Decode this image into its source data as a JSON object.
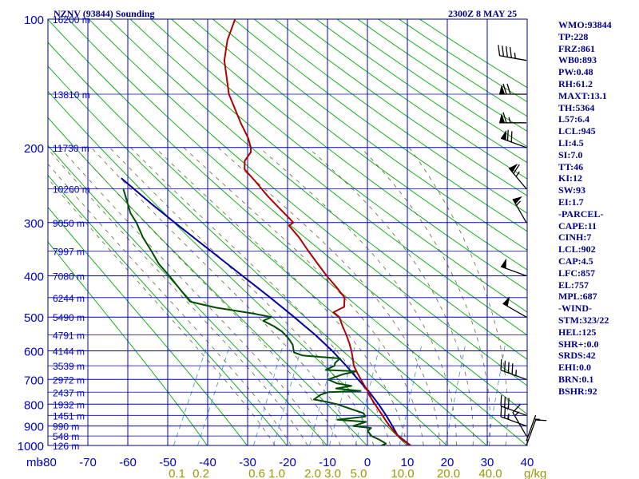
{
  "header": {
    "station": "NZNV (93844) Sounding",
    "valid_time": "2300Z  8 MAY 25"
  },
  "colors": {
    "frame": "#00008b",
    "grid": "#0000cc",
    "dry_adiabat": "#00aa00",
    "moist_adiabat": "#666633",
    "mixing_ratio": "#3a8ed8",
    "temperature": "#b00000",
    "dewpoint": "#004d00",
    "parcel": "#0000a0",
    "wind_barb": "#000000",
    "label": "#0000cc",
    "stats_text": "#00008b",
    "mixing_label": "#999900"
  },
  "chart_data": {
    "type": "skew-t",
    "title": "NZNV (93844) Sounding",
    "xlabel": "mb",
    "ylim": [
      1000,
      100
    ],
    "xlim": [
      -80,
      40
    ],
    "skew_c_per_mb": 0.0345,
    "pressure_levels": [
      100,
      200,
      300,
      400,
      500,
      600,
      700,
      800,
      900,
      1000
    ],
    "temperature_ticks": [
      "-80",
      "-70",
      "-60",
      "-50",
      "-40",
      "-30",
      "-20",
      "-10",
      "0",
      "10",
      "20",
      "30",
      "40"
    ],
    "height_labels": [
      {
        "p": 100,
        "label": "16200 m"
      },
      {
        "p": 150,
        "label": "13810 m"
      },
      {
        "p": 200,
        "label": "11730 m"
      },
      {
        "p": 250,
        "label": "10260 m"
      },
      {
        "p": 300,
        "label": "9050 m"
      },
      {
        "p": 350,
        "label": "7997 m"
      },
      {
        "p": 400,
        "label": "7080 m"
      },
      {
        "p": 450,
        "label": "6244 m"
      },
      {
        "p": 500,
        "label": "5490 m"
      },
      {
        "p": 550,
        "label": "4791 m"
      },
      {
        "p": 600,
        "label": "4144 m"
      },
      {
        "p": 650,
        "label": "3539 m"
      },
      {
        "p": 700,
        "label": "2972 m"
      },
      {
        "p": 750,
        "label": "2437 m"
      },
      {
        "p": 800,
        "label": "1932 m"
      },
      {
        "p": 850,
        "label": "1451 m"
      },
      {
        "p": 900,
        "label": "990 m"
      },
      {
        "p": 950,
        "label": "548 m"
      },
      {
        "p": 1000,
        "label": "126 m"
      }
    ],
    "mixing_ratio_labels": [
      {
        "value": "0.1",
        "t_at_1000": -48.5
      },
      {
        "value": "0.2",
        "t_at_1000": -42.5
      },
      {
        "value": "0.6",
        "t_at_1000": -28.5
      },
      {
        "value": "1.0",
        "t_at_1000": -23.5
      },
      {
        "value": "2.0",
        "t_at_1000": -14.5
      },
      {
        "value": "3.0",
        "t_at_1000": -9.5
      },
      {
        "value": "5.0",
        "t_at_1000": -3
      },
      {
        "value": "10.0",
        "t_at_1000": 8
      },
      {
        "value": "20.0",
        "t_at_1000": 19.5
      },
      {
        "value": "40.0",
        "t_at_1000": 30
      }
    ],
    "mixing_ratio_unit": "g/kg",
    "series": [
      {
        "key": "temperature",
        "points": [
          [
            1000,
            10.8
          ],
          [
            975,
            8.2
          ],
          [
            950,
            6.0
          ],
          [
            925,
            4.0
          ],
          [
            900,
            2.1
          ],
          [
            875,
            0.3
          ],
          [
            850,
            -1.4
          ],
          [
            825,
            -3.2
          ],
          [
            800,
            -5.0
          ],
          [
            775,
            -6.8
          ],
          [
            750,
            -8.4
          ],
          [
            725,
            -10.2
          ],
          [
            700,
            -12.0
          ],
          [
            675,
            -13.8
          ],
          [
            650,
            -15.5
          ],
          [
            625,
            -16.6
          ],
          [
            600,
            -17.8
          ],
          [
            575,
            -19.2
          ],
          [
            550,
            -20.8
          ],
          [
            525,
            -22.6
          ],
          [
            500,
            -24.3
          ],
          [
            487,
            -26.2
          ],
          [
            473,
            -24.0
          ],
          [
            450,
            -24.7
          ],
          [
            425,
            -27.6
          ],
          [
            400,
            -30.9
          ],
          [
            375,
            -34.0
          ],
          [
            350,
            -37.2
          ],
          [
            325,
            -40.4
          ],
          [
            305,
            -43.6
          ],
          [
            300,
            -42.7
          ],
          [
            280,
            -46.5
          ],
          [
            260,
            -50.5
          ],
          [
            240,
            -54.3
          ],
          [
            225,
            -57.5
          ],
          [
            215,
            -57.8
          ],
          [
            205,
            -56.6
          ],
          [
            200,
            -56.8
          ],
          [
            190,
            -57.8
          ],
          [
            175,
            -60.2
          ],
          [
            150,
            -64.0
          ],
          [
            125,
            -66.0
          ],
          [
            112,
            -65.7
          ],
          [
            100,
            -64.2
          ]
        ]
      },
      {
        "key": "dewpoint",
        "points": [
          [
            1000,
            3.5
          ],
          [
            990,
            4.3
          ],
          [
            970,
            2.0
          ],
          [
            950,
            -0.7
          ],
          [
            925,
            -2.5
          ],
          [
            910,
            -2.2
          ],
          [
            900,
            -7.0
          ],
          [
            880,
            -4.5
          ],
          [
            870,
            -12.0
          ],
          [
            855,
            -5.5
          ],
          [
            840,
            -6.5
          ],
          [
            820,
            -10.5
          ],
          [
            800,
            -14.5
          ],
          [
            790,
            -17.5
          ],
          [
            780,
            -21.0
          ],
          [
            760,
            -20.0
          ],
          [
            750,
            -18.5
          ],
          [
            745,
            -10.5
          ],
          [
            735,
            -17.0
          ],
          [
            725,
            -13.5
          ],
          [
            715,
            -17.5
          ],
          [
            700,
            -20.2
          ],
          [
            680,
            -17.0
          ],
          [
            670,
            -14.2
          ],
          [
            665,
            -22.0
          ],
          [
            650,
            -20.3
          ],
          [
            640,
            -20.5
          ],
          [
            625,
            -19.8
          ],
          [
            615,
            -29.5
          ],
          [
            605,
            -32.0
          ],
          [
            580,
            -33.2
          ],
          [
            560,
            -35.0
          ],
          [
            540,
            -37.3
          ],
          [
            525,
            -39.8
          ],
          [
            510,
            -43.0
          ],
          [
            500,
            -41.3
          ],
          [
            490,
            -46.3
          ],
          [
            475,
            -56.0
          ],
          [
            460,
            -63.0
          ],
          [
            450,
            -64.2
          ],
          [
            425,
            -67.2
          ],
          [
            400,
            -70.3
          ],
          [
            375,
            -73.8
          ],
          [
            350,
            -76.5
          ],
          [
            325,
            -79.5
          ],
          [
            300,
            -82.0
          ],
          [
            285,
            -84.0
          ],
          [
            250,
            -87.0
          ]
        ]
      },
      {
        "key": "parcel",
        "points": [
          [
            1000,
            10.8
          ],
          [
            960,
            7.0
          ],
          [
            945,
            5.6
          ],
          [
            900,
            2.8
          ],
          [
            850,
            -0.5
          ],
          [
            800,
            -4.1
          ],
          [
            750,
            -8.1
          ],
          [
            700,
            -12.7
          ],
          [
            650,
            -17.4
          ],
          [
            600,
            -22.6
          ],
          [
            550,
            -28.6
          ],
          [
            500,
            -35.6
          ],
          [
            450,
            -43.3
          ],
          [
            400,
            -52.0
          ],
          [
            350,
            -61.6
          ],
          [
            300,
            -72.4
          ],
          [
            270,
            -79.5
          ],
          [
            236,
            -88.0
          ]
        ]
      }
    ],
    "wind_barbs": [
      {
        "p": 1000,
        "dir": 20,
        "kt": 10
      },
      {
        "p": 975,
        "dir": 20,
        "kt": 5
      },
      {
        "p": 950,
        "dir": 330,
        "kt": 15
      },
      {
        "p": 900,
        "dir": 290,
        "kt": 25
      },
      {
        "p": 850,
        "dir": 290,
        "kt": 30
      },
      {
        "p": 700,
        "dir": 290,
        "kt": 45
      },
      {
        "p": 500,
        "dir": 300,
        "kt": 50
      },
      {
        "p": 400,
        "dir": 290,
        "kt": 50
      },
      {
        "p": 300,
        "dir": 330,
        "kt": 55
      },
      {
        "p": 250,
        "dir": 320,
        "kt": 65
      },
      {
        "p": 200,
        "dir": 290,
        "kt": 70
      },
      {
        "p": 175,
        "dir": 270,
        "kt": 65
      },
      {
        "p": 150,
        "dir": 270,
        "kt": 70
      },
      {
        "p": 125,
        "dir": 280,
        "kt": 45
      }
    ]
  },
  "stats": [
    "WMO:93844",
    "TP:228",
    "FRZ:861",
    "WB0:893",
    "PW:0.48",
    "RH:61.2",
    "MAXT:13.1",
    "TH:5364",
    "L57:6.4",
    "LCL:945",
    "LI:4.5",
    "SI:7.0",
    "TT:46",
    "KI:12",
    "SW:93",
    "EI:1.7",
    "-PARCEL-",
    "CAPE:11",
    "CINH:7",
    "LCL:902",
    "CAP:4.5",
    "LFC:857",
    "EL:757",
    "MPL:687",
    "-WIND-",
    "STM:323/22",
    "HEL:125",
    "SHR+:0.0",
    "SRDS:42",
    "EHI:0.0",
    "BRN:0.1",
    "BSHR:92"
  ]
}
